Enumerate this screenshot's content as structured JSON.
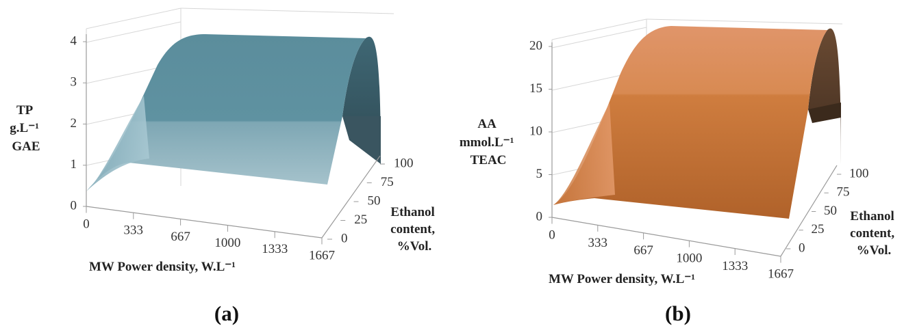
{
  "colors": {
    "panel_a_surface": "#6f9fae",
    "panel_b_surface": "#cf7f45",
    "axis": "#9a9a9a",
    "grid": "#d6d6d6"
  },
  "chart_data": [
    {
      "type": "surface3d",
      "caption": "(a)",
      "z_label_lines": [
        "TP",
        "g.L⁻¹",
        "GAE"
      ],
      "x_label": "MW Power density, W.L⁻¹",
      "y_label_lines": [
        "Ethanol",
        "content,",
        "%Vol."
      ],
      "x_ticks": [
        "0",
        "333",
        "667",
        "1000",
        "1333",
        "1667"
      ],
      "y_ticks": [
        "0",
        "25",
        "50",
        "75",
        "100"
      ],
      "z_ticks": [
        "0",
        "1",
        "2",
        "3",
        "4"
      ],
      "x_range": [
        0,
        1667
      ],
      "y_range": [
        0,
        100
      ],
      "z_range": [
        0,
        4
      ],
      "surface_profile_x": [
        0,
        333,
        667,
        1000,
        1333,
        1667
      ],
      "surface_front_z": [
        0.3,
        1.5,
        1.5,
        1.5,
        1.5,
        1.5
      ],
      "surface_peak_z": [
        2.0,
        3.9,
        4.1,
        4.1,
        4.1,
        4.0
      ],
      "surface_back_z": [
        1.0,
        1.8,
        1.9,
        1.9,
        1.9,
        1.9
      ]
    },
    {
      "type": "surface3d",
      "caption": "(b)",
      "z_label_lines": [
        "AA",
        "mmol.L⁻¹",
        "TEAC"
      ],
      "x_label": "MW Power density, W.L⁻¹",
      "y_label_lines": [
        "Ethanol",
        "content,",
        "%Vol."
      ],
      "x_ticks": [
        "0",
        "333",
        "667",
        "1000",
        "1333",
        "1667"
      ],
      "y_ticks": [
        "0",
        "25",
        "50",
        "75",
        "100"
      ],
      "z_ticks": [
        "0",
        "5",
        "10",
        "15",
        "20"
      ],
      "x_range": [
        0,
        1667
      ],
      "y_range": [
        0,
        100
      ],
      "z_range": [
        0,
        20
      ],
      "surface_profile_x": [
        0,
        333,
        667,
        1000,
        1333,
        1667
      ],
      "surface_front_z": [
        1.0,
        6.0,
        6.2,
        6.2,
        6.2,
        6.2
      ],
      "surface_peak_z": [
        10.0,
        21.0,
        22.0,
        22.0,
        22.0,
        21.5
      ],
      "surface_back_z": [
        5.0,
        10.0,
        10.5,
        10.5,
        10.5,
        10.5
      ]
    }
  ]
}
